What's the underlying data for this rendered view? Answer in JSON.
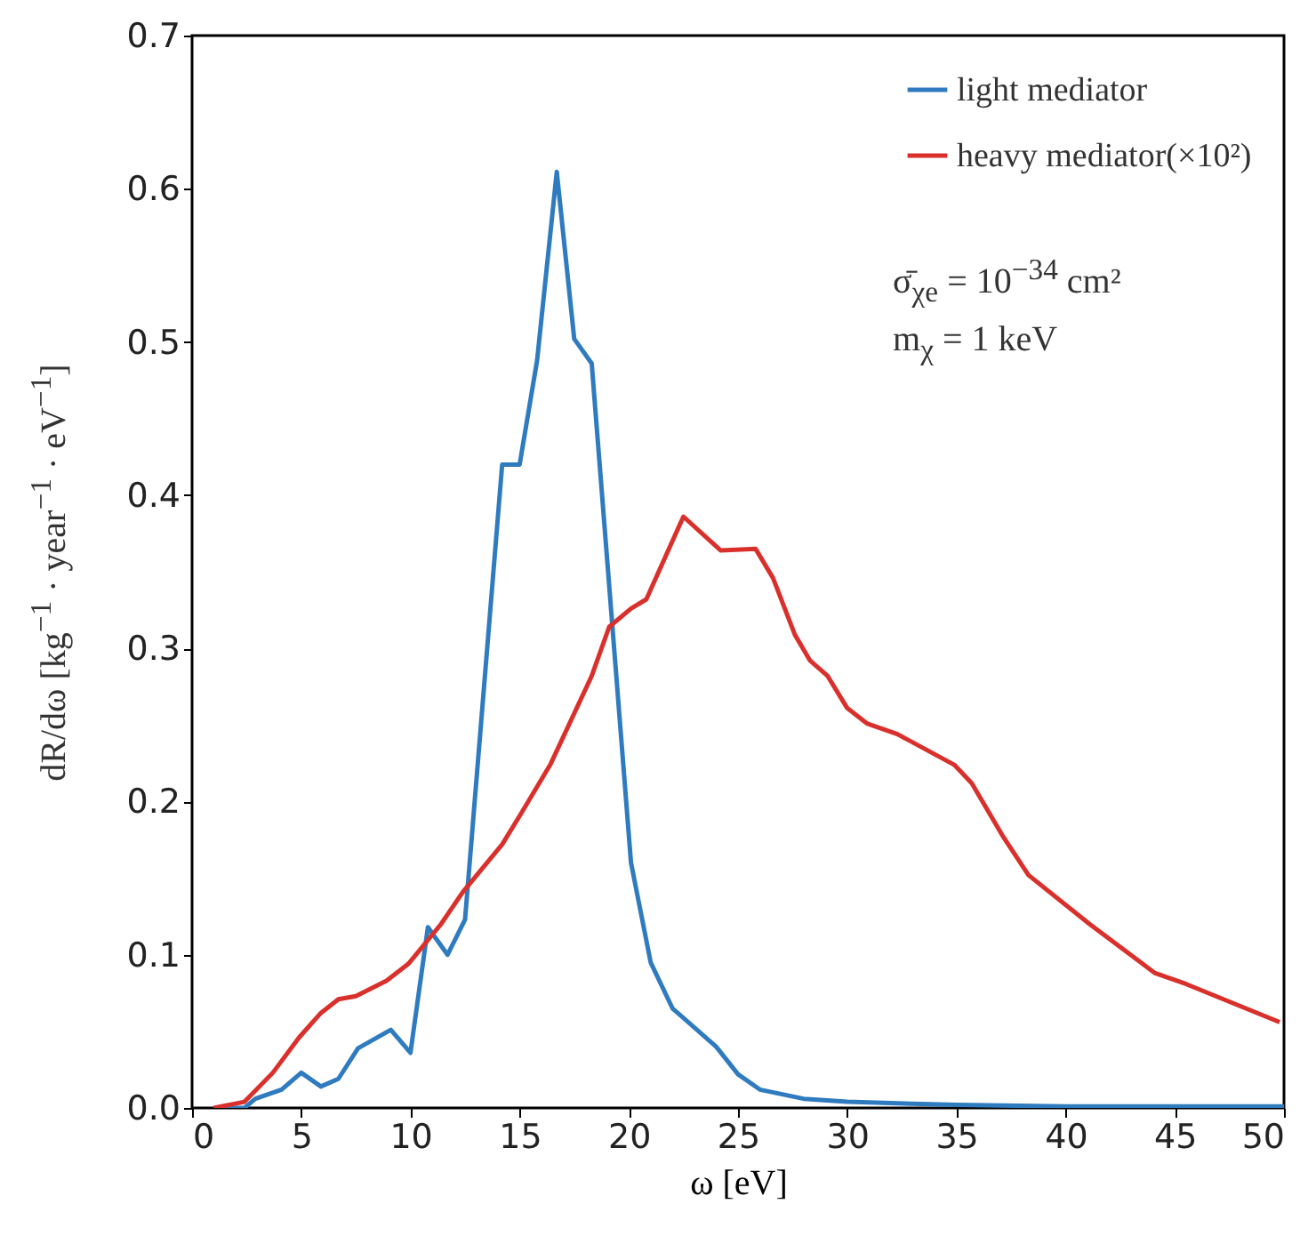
{
  "chart_data": {
    "type": "line",
    "xlabel": "ω [eV]",
    "ylabel": "dR/dω [kg$^{−1}$ · year$^{−1}$ · eV$^{−1}$]",
    "xlim": [
      0,
      50
    ],
    "xticks": [
      0,
      5,
      10,
      15,
      20,
      25,
      30,
      35,
      40,
      45,
      50
    ],
    "ylim": [
      0,
      0.7
    ],
    "yticks": [
      {
        "value": 0,
        "label": "0.0"
      },
      0.1,
      0.2,
      0.3,
      0.4,
      0.5,
      0.6,
      0.7
    ],
    "grid": false,
    "legend": "top right",
    "line_style": "solid",
    "marker": "none",
    "annotations": [
      "σ̄$_{χe}$ = 10$^{−34}$ cm²",
      "m$_{χ}$ = 1 keV"
    ],
    "series": [
      {
        "name": "light mediator",
        "color": "#2f7bbf",
        "x": [
          1,
          2.4,
          2.9,
          4.1,
          5.0,
          5.9,
          6.7,
          7.6,
          9.1,
          10.0,
          10.8,
          11.7,
          12.5,
          14.2,
          15.0,
          15.8,
          16.7,
          17.5,
          18.3,
          20.1,
          21,
          22,
          24,
          25,
          26,
          28,
          30,
          35,
          40,
          50
        ],
        "values": [
          0,
          0,
          0.006,
          0.012,
          0.023,
          0.014,
          0.019,
          0.039,
          0.051,
          0.036,
          0.118,
          0.1,
          0.123,
          0.42,
          0.42,
          0.488,
          0.611,
          0.502,
          0.486,
          0.16,
          0.095,
          0.065,
          0.04,
          0.022,
          0.012,
          0.006,
          0.004,
          0.002,
          0.001,
          0.001
        ]
      },
      {
        "name": "heavy mediator(×10²)",
        "color": "#d9302c",
        "x": [
          1,
          2.4,
          3.7,
          4.9,
          5.9,
          6.7,
          7.5,
          8.9,
          9.9,
          11.4,
          12.4,
          14.2,
          15.1,
          16.4,
          18.3,
          19.1,
          20.1,
          20.8,
          22.5,
          24.2,
          25.8,
          26.6,
          27.6,
          28.3,
          29.1,
          30.0,
          30.9,
          32.3,
          33.6,
          34.9,
          35.7,
          37.1,
          38.3,
          41.1,
          44.1,
          45.5,
          49.8
        ],
        "values": [
          0,
          0.004,
          0.023,
          0.046,
          0.062,
          0.071,
          0.073,
          0.083,
          0.094,
          0.12,
          0.141,
          0.172,
          0.193,
          0.224,
          0.282,
          0.314,
          0.326,
          0.332,
          0.386,
          0.364,
          0.365,
          0.346,
          0.309,
          0.292,
          0.282,
          0.261,
          0.251,
          0.244,
          0.234,
          0.224,
          0.212,
          0.178,
          0.152,
          0.12,
          0.088,
          0.081,
          0.056
        ]
      }
    ]
  }
}
